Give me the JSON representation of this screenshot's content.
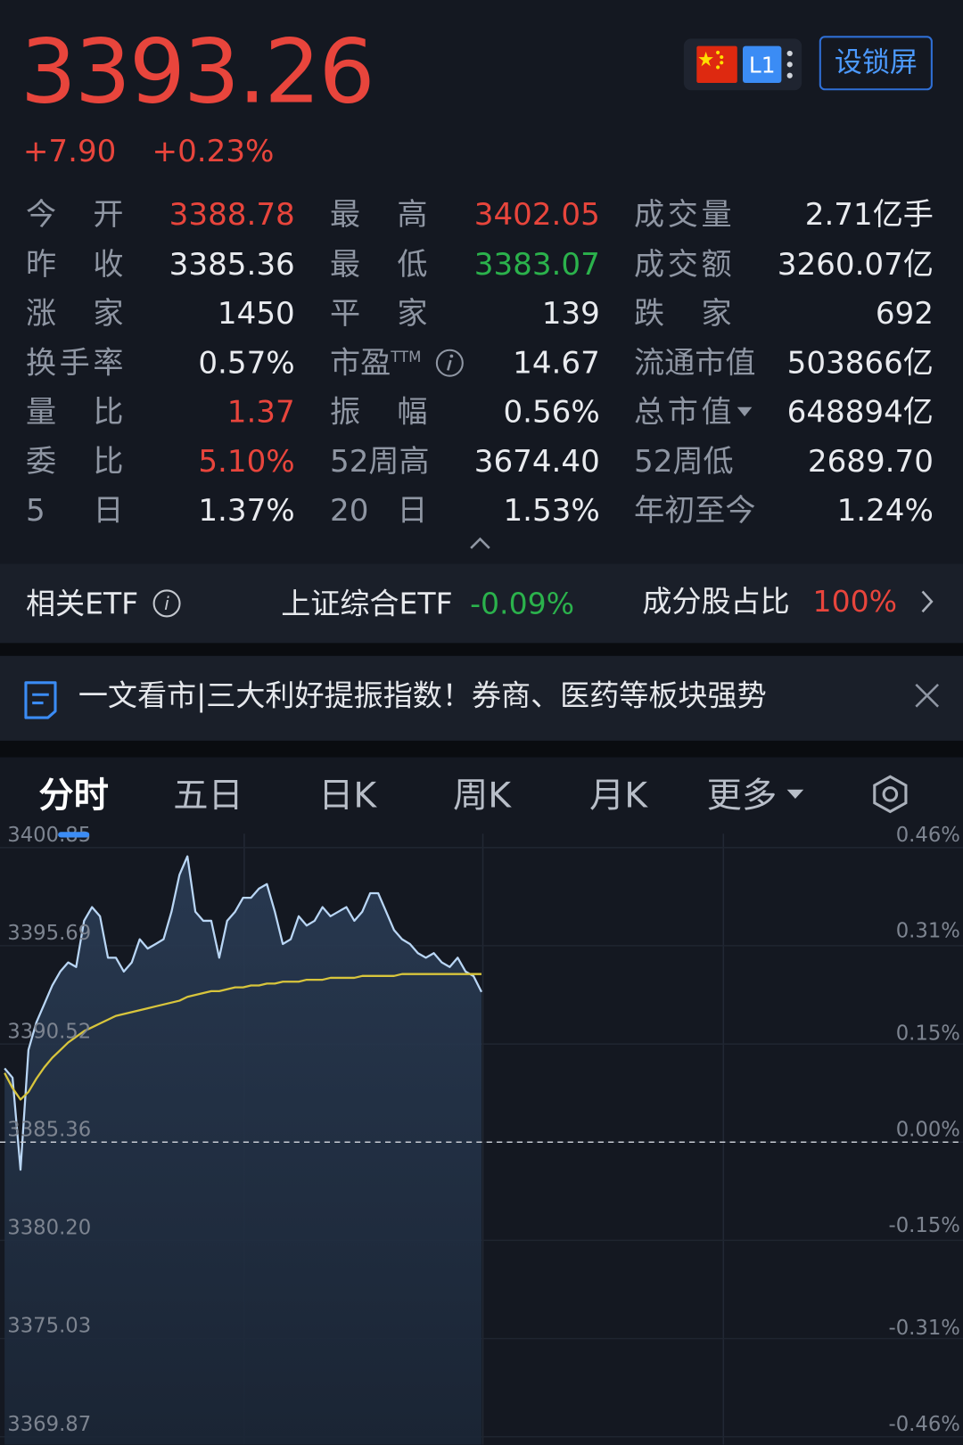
{
  "header": {
    "price": "3393.26",
    "change": "+7.90",
    "change_pct": "+0.23%",
    "level_badge": "L1",
    "lock_button": "设锁屏"
  },
  "stats": {
    "rows": [
      [
        {
          "label": "今开",
          "value": "3388.78",
          "color": "#e8453c"
        },
        {
          "label": "最高",
          "value": "3402.05",
          "color": "#e8453c"
        },
        {
          "label": "成交量",
          "value": "2.71亿手"
        }
      ],
      [
        {
          "label": "昨收",
          "value": "3385.36"
        },
        {
          "label": "最低",
          "value": "3383.07",
          "color": "#2bb24c"
        },
        {
          "label": "成交额",
          "value": "3260.07亿"
        }
      ],
      [
        {
          "label": "涨家",
          "value": "1450"
        },
        {
          "label": "平家",
          "value": "139"
        },
        {
          "label": "跌家",
          "value": "692"
        }
      ],
      [
        {
          "label": "换手率",
          "value": "0.57%"
        },
        {
          "label": "市盈",
          "label_sup": "TTM",
          "info_icon": true,
          "value": "14.67"
        },
        {
          "label": "流通市值",
          "value": "503866亿"
        }
      ],
      [
        {
          "label": "量比",
          "value": "1.37",
          "color": "#e8453c"
        },
        {
          "label": "振幅",
          "value": "0.56%"
        },
        {
          "label": "总市值",
          "dropdown": true,
          "value": "648894亿"
        }
      ],
      [
        {
          "label": "委比",
          "value": "5.10%",
          "color": "#e8453c"
        },
        {
          "label": "52周高",
          "value": "3674.40"
        },
        {
          "label": "52周低",
          "value": "2689.70"
        }
      ],
      [
        {
          "label": "5日",
          "value": "1.37%"
        },
        {
          "label": "20日",
          "value": "1.53%"
        },
        {
          "label": "年初至今",
          "value": "1.24%"
        }
      ]
    ]
  },
  "etf": {
    "label": "相关ETF",
    "name": "上证综合ETF",
    "change": "-0.09%",
    "ratio_label": "成分股占比",
    "ratio": "100%"
  },
  "news": {
    "text": "一文看市|三大利好提振指数！券商、医药等板块强势"
  },
  "tabs": {
    "items": [
      "分时",
      "五日",
      "日K",
      "周K",
      "月K",
      "更多"
    ],
    "active": 0
  },
  "chart_data": {
    "type": "line",
    "x": [
      0,
      2,
      4,
      6,
      8,
      10,
      12,
      14,
      16,
      18,
      20,
      22,
      24,
      26,
      28,
      30,
      32,
      34,
      36,
      38,
      40,
      42,
      44,
      46,
      48,
      50,
      52,
      54,
      56,
      58,
      60,
      62,
      64,
      66,
      68,
      70,
      72,
      74,
      76,
      78,
      80,
      82,
      84,
      86,
      88,
      90,
      92,
      94,
      96,
      98,
      100,
      102,
      104,
      106,
      108,
      110,
      112,
      114,
      116,
      118,
      120
    ],
    "xlim": [
      0,
      240
    ],
    "ylim": [
      3369.87,
      3400.85
    ],
    "yticks": [
      3400.85,
      3395.69,
      3390.52,
      3385.36,
      {
        "value": 3380.2,
        "label": "3380.20"
      },
      3375.03,
      3369.87
    ],
    "y2lim": [
      -0.46,
      0.46
    ],
    "y2ticks": [
      {
        "value": 0.46,
        "label": "0.46%"
      },
      {
        "value": 0.31,
        "label": "0.31%"
      },
      {
        "value": 0.15,
        "label": "0.15%"
      },
      {
        "value": 0,
        "label": "0.00%"
      },
      {
        "value": -0.15,
        "label": "-0.15%"
      },
      {
        "value": -0.31,
        "label": "-0.31%"
      },
      {
        "value": -0.46,
        "label": "-0.46%"
      }
    ],
    "grid": true,
    "series": [
      {
        "color": "#b9d6f5",
        "values": [
          3389.24,
          3388.75,
          3383.91,
          3390.21,
          3391.66,
          3392.63,
          3393.6,
          3394.33,
          3394.81,
          3394.57,
          3397.0,
          3397.72,
          3397.24,
          3395.06,
          3395.06,
          3394.33,
          3394.81,
          3396.03,
          3395.54,
          3395.78,
          3396.03,
          3397.48,
          3399.42,
          3400.39,
          3397.48,
          3397.0,
          3397.0,
          3395.06,
          3397.0,
          3397.48,
          3398.21,
          3398.21,
          3398.69,
          3398.93,
          3397.48,
          3395.78,
          3396.03,
          3397.24,
          3396.75,
          3397.0,
          3397.72,
          3397.24,
          3397.48,
          3397.72,
          3397.0,
          3397.48,
          3398.45,
          3398.45,
          3397.48,
          3396.51,
          3396.03,
          3395.78,
          3395.3,
          3395.06,
          3395.3,
          3394.81,
          3394.57,
          3395.06,
          3394.33,
          3394.09,
          3393.26
        ]
      },
      {
        "color": "#d8c53c",
        "values": [
          3389.0,
          3388.2,
          3387.6,
          3388.0,
          3388.7,
          3389.3,
          3389.8,
          3390.2,
          3390.6,
          3390.9,
          3391.2,
          3391.4,
          3391.6,
          3391.8,
          3392.0,
          3392.1,
          3392.2,
          3392.3,
          3392.4,
          3392.5,
          3392.6,
          3392.7,
          3392.8,
          3393.0,
          3393.1,
          3393.2,
          3393.3,
          3393.3,
          3393.4,
          3393.5,
          3393.5,
          3393.6,
          3393.6,
          3393.7,
          3393.7,
          3393.8,
          3393.8,
          3393.8,
          3393.9,
          3393.9,
          3393.9,
          3394.0,
          3394.0,
          3394.0,
          3394.0,
          3394.1,
          3394.1,
          3394.1,
          3394.1,
          3394.1,
          3394.2,
          3394.2,
          3394.2,
          3394.2,
          3394.2,
          3394.2,
          3394.2,
          3394.2,
          3394.2,
          3394.2,
          3394.2
        ]
      }
    ]
  }
}
